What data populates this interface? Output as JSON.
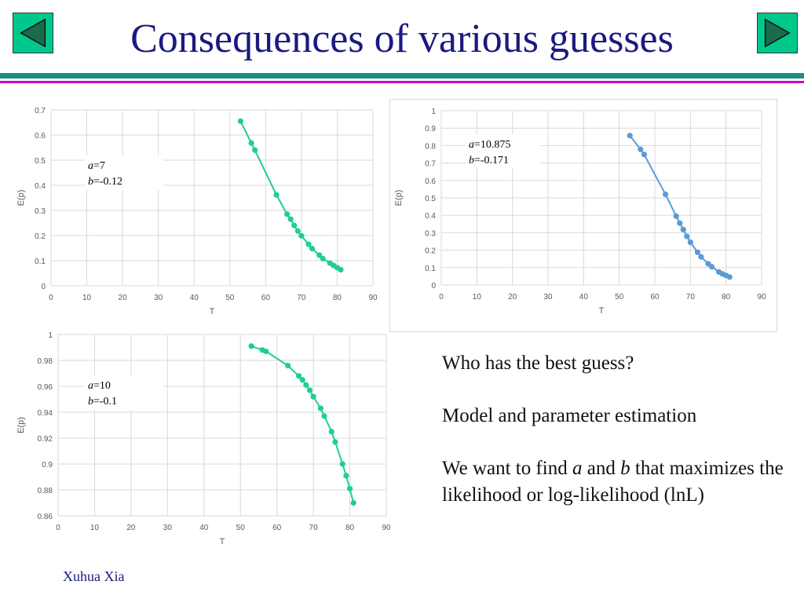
{
  "slide": {
    "title": "Consequences of various guesses",
    "footer": "Xuhua Xia",
    "bullets": [
      {
        "text": "Who has the best guess?"
      },
      {
        "text": "Model and parameter estimation"
      },
      {
        "segments": [
          {
            "text": "We want to find ",
            "italic": false
          },
          {
            "text": "a",
            "italic": true
          },
          {
            "text": " and ",
            "italic": false
          },
          {
            "text": "b",
            "italic": true
          },
          {
            "text": " that maximizes the likelihood or log-likelihood (lnL)",
            "italic": false
          }
        ]
      }
    ]
  },
  "nav": {
    "prev_icon": "triangle-left-icon",
    "next_icon": "triangle-right-icon"
  },
  "colors": {
    "title": "#1a1a80",
    "nav_fill": "#00c78c",
    "green_series": "#1fcf8f",
    "blue_series": "#5b9bd5",
    "bar_teal": "#1a8f82",
    "bar_magenta": "#cc00cc"
  },
  "chart_data": [
    {
      "type": "line",
      "title": "",
      "xlabel": "T",
      "ylabel": "E(p)",
      "xlim": [
        0,
        90
      ],
      "ylim": [
        0,
        0.7
      ],
      "xticks": [
        "0",
        "10",
        "20",
        "30",
        "40",
        "50",
        "60",
        "70",
        "80",
        "90"
      ],
      "yticks": [
        "0",
        "0.1",
        "0.2",
        "0.3",
        "0.4",
        "0.5",
        "0.6",
        "0.7"
      ],
      "annotation": {
        "a_label": "a",
        "a_value": "=7",
        "b_label": "b",
        "b_value": "=-0.12"
      },
      "color": "#1fcf8f",
      "series": [
        {
          "name": "E(p)",
          "x": [
            53,
            56,
            57,
            63,
            66,
            67,
            68,
            69,
            70,
            72,
            73,
            75,
            76,
            78,
            79,
            80,
            81
          ],
          "y": [
            0.655,
            0.568,
            0.54,
            0.362,
            0.285,
            0.265,
            0.24,
            0.218,
            0.199,
            0.165,
            0.148,
            0.122,
            0.108,
            0.09,
            0.081,
            0.072,
            0.064
          ]
        }
      ]
    },
    {
      "type": "line",
      "title": "",
      "xlabel": "T",
      "ylabel": "E(p)",
      "xlim": [
        0,
        90
      ],
      "ylim": [
        0,
        1
      ],
      "xticks": [
        "0",
        "10",
        "20",
        "30",
        "40",
        "50",
        "60",
        "70",
        "80",
        "90"
      ],
      "yticks": [
        "0",
        "0.1",
        "0.2",
        "0.3",
        "0.4",
        "0.5",
        "0.6",
        "0.7",
        "0.8",
        "0.9",
        "1"
      ],
      "annotation": {
        "a_label": "a",
        "a_value": "=10.875",
        "b_label": "b",
        "b_value": "=-0.171"
      },
      "color": "#5b9bd5",
      "series": [
        {
          "name": "E(p)",
          "x": [
            53,
            56,
            57,
            63,
            66,
            67,
            68,
            69,
            70,
            72,
            73,
            75,
            76,
            78,
            79,
            80,
            81
          ],
          "y": [
            0.857,
            0.778,
            0.749,
            0.52,
            0.395,
            0.355,
            0.318,
            0.279,
            0.245,
            0.188,
            0.162,
            0.122,
            0.105,
            0.075,
            0.064,
            0.055,
            0.046
          ]
        }
      ]
    },
    {
      "type": "line",
      "title": "",
      "xlabel": "T",
      "ylabel": "E(p)",
      "xlim": [
        0,
        90
      ],
      "ylim": [
        0.86,
        1
      ],
      "xticks": [
        "0",
        "10",
        "20",
        "30",
        "40",
        "50",
        "60",
        "70",
        "80",
        "90"
      ],
      "yticks": [
        "0.86",
        "0.88",
        "0.9",
        "0.92",
        "0.94",
        "0.96",
        "0.98",
        "1"
      ],
      "annotation": {
        "a_label": "a",
        "a_value": "=10",
        "b_label": "b",
        "b_value": "=-0.1"
      },
      "color": "#1fcf8f",
      "series": [
        {
          "name": "E(p)",
          "x": [
            53,
            56,
            57,
            63,
            66,
            67,
            68,
            69,
            70,
            72,
            73,
            75,
            76,
            78,
            79,
            80,
            81
          ],
          "y": [
            0.991,
            0.988,
            0.987,
            0.976,
            0.968,
            0.965,
            0.961,
            0.957,
            0.952,
            0.943,
            0.937,
            0.925,
            0.917,
            0.9,
            0.891,
            0.881,
            0.87
          ]
        }
      ]
    }
  ]
}
